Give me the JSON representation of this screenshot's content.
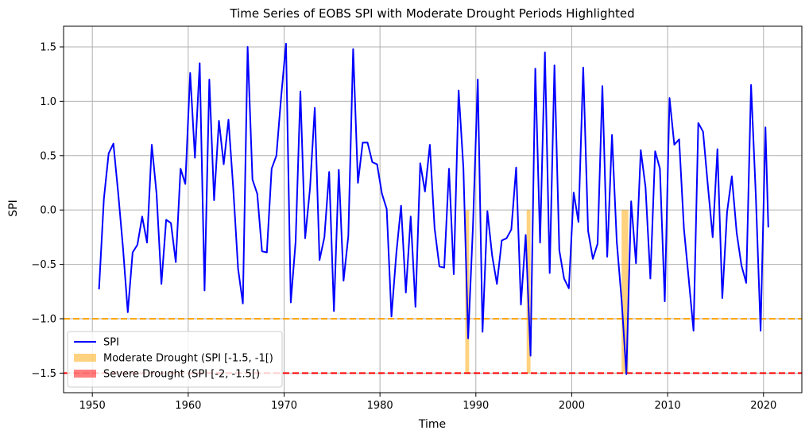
{
  "chart_data": {
    "type": "line",
    "title": "Time Series of EOBS SPI with Moderate Drought Periods Highlighted",
    "xlabel": "Time",
    "ylabel": "SPI",
    "xlim": [
      1947.0,
      2024.0
    ],
    "ylim": [
      -1.68,
      1.69
    ],
    "xticks": [
      1950,
      1960,
      1970,
      1980,
      1990,
      2000,
      2010,
      2020
    ],
    "xtick_labels": [
      "1950",
      "1960",
      "1970",
      "1980",
      "1990",
      "2000",
      "2010",
      "2020"
    ],
    "yticks": [
      -1.5,
      -1.0,
      -0.5,
      0.0,
      0.5,
      1.0,
      1.5
    ],
    "ytick_labels": [
      "−1.5",
      "−1.0",
      "−0.5",
      "0.0",
      "0.5",
      "1.0",
      "1.5"
    ],
    "grid": true,
    "legend_position": "lower-left",
    "colors": {
      "spi": "#0000ff",
      "moderate": "#ffa500",
      "severe": "#ff0000",
      "grid": "#b0b0b0"
    },
    "thresholds": [
      {
        "value": -1.0,
        "color": "#ffa500",
        "style": "dashed"
      },
      {
        "value": -1.5,
        "color": "#ff0000",
        "style": "dashed"
      }
    ],
    "moderate_drought_periods": [
      [
        1988.9,
        1989.3
      ],
      [
        1995.3,
        1995.7
      ],
      [
        2005.2,
        2005.9
      ]
    ],
    "series": [
      {
        "name": "SPI",
        "x": [
          1950.7,
          1951.2,
          1951.7,
          1952.2,
          1952.7,
          1953.2,
          1953.7,
          1954.2,
          1954.7,
          1955.2,
          1955.7,
          1956.2,
          1956.7,
          1957.2,
          1957.7,
          1958.2,
          1958.7,
          1959.2,
          1959.7,
          1960.2,
          1960.7,
          1961.2,
          1961.7,
          1962.2,
          1962.7,
          1963.2,
          1963.7,
          1964.2,
          1964.7,
          1965.2,
          1965.7,
          1966.2,
          1966.7,
          1967.2,
          1967.7,
          1968.2,
          1968.7,
          1969.2,
          1969.7,
          1970.2,
          1970.7,
          1971.2,
          1971.7,
          1972.2,
          1972.7,
          1973.2,
          1973.7,
          1974.2,
          1974.7,
          1975.2,
          1975.7,
          1976.2,
          1976.7,
          1977.2,
          1977.7,
          1978.2,
          1978.7,
          1979.2,
          1979.7,
          1980.2,
          1980.7,
          1981.2,
          1981.7,
          1982.2,
          1982.7,
          1983.2,
          1983.7,
          1984.2,
          1984.7,
          1985.2,
          1985.7,
          1986.2,
          1986.7,
          1987.2,
          1987.7,
          1988.2,
          1988.7,
          1989.2,
          1989.7,
          1990.2,
          1990.7,
          1991.2,
          1991.7,
          1992.2,
          1992.7,
          1993.2,
          1993.7,
          1994.2,
          1994.7,
          1995.2,
          1995.7,
          1996.2,
          1996.7,
          1997.2,
          1997.7,
          1998.2,
          1998.7,
          1999.2,
          1999.7,
          2000.2,
          2000.7,
          2001.2,
          2001.7,
          2002.2,
          2002.7,
          2003.2,
          2003.7,
          2004.2,
          2004.7,
          2005.2,
          2005.7,
          2006.2,
          2006.7,
          2007.2,
          2007.7,
          2008.2,
          2008.7,
          2009.2,
          2009.7,
          2010.2,
          2010.7,
          2011.2,
          2011.7,
          2012.2,
          2012.7,
          2013.2,
          2013.7,
          2014.2,
          2014.7,
          2015.2,
          2015.7,
          2016.2,
          2016.7,
          2017.2,
          2017.7,
          2018.2,
          2018.7,
          2019.2,
          2019.7,
          2020.2,
          2020.5
        ],
        "values": [
          -0.73,
          0.1,
          0.52,
          0.61,
          0.15,
          -0.35,
          -0.94,
          -0.39,
          -0.32,
          -0.06,
          -0.3,
          0.6,
          0.15,
          -0.68,
          -0.09,
          -0.12,
          -0.48,
          0.38,
          0.24,
          1.26,
          0.48,
          1.35,
          -0.74,
          1.2,
          0.09,
          0.82,
          0.42,
          0.83,
          0.2,
          -0.54,
          -0.86,
          1.5,
          0.28,
          0.15,
          -0.38,
          -0.39,
          0.38,
          0.5,
          1.05,
          1.53,
          -0.85,
          -0.29,
          1.09,
          -0.26,
          0.2,
          0.94,
          -0.46,
          -0.25,
          0.35,
          -0.93,
          0.37,
          -0.65,
          -0.24,
          1.48,
          0.25,
          0.62,
          0.62,
          0.44,
          0.42,
          0.15,
          0.01,
          -0.98,
          -0.4,
          0.04,
          -0.76,
          -0.06,
          -0.89,
          0.43,
          0.17,
          0.6,
          -0.17,
          -0.52,
          -0.53,
          0.38,
          -0.59,
          1.1,
          0.39,
          -1.18,
          -0.14,
          1.2,
          -1.12,
          -0.01,
          -0.42,
          -0.68,
          -0.28,
          -0.26,
          -0.18,
          0.39,
          -0.87,
          -0.23,
          -1.34,
          1.3,
          -0.3,
          1.45,
          -0.58,
          1.33,
          -0.37,
          -0.63,
          -0.72,
          0.16,
          -0.11,
          1.31,
          -0.19,
          -0.45,
          -0.31,
          1.14,
          -0.43,
          0.69,
          -0.29,
          -0.83,
          -1.51,
          0.08,
          -0.49,
          0.55,
          0.21,
          -0.63,
          0.54,
          0.38,
          -0.84,
          1.03,
          0.6,
          0.65,
          -0.17,
          -0.63,
          -1.11,
          0.8,
          0.72,
          0.22,
          -0.25,
          0.56,
          -0.81,
          -0.02,
          0.31,
          -0.21,
          -0.51,
          -0.67,
          1.15,
          0.13,
          -1.11,
          0.76,
          -0.16
        ]
      }
    ],
    "legend": [
      {
        "label": "SPI",
        "kind": "line",
        "color": "#0000ff"
      },
      {
        "label": "Moderate Drought (SPI [-1.5, -1[)",
        "kind": "patch",
        "color": "#ffa500"
      },
      {
        "label": "Severe Drought (SPI [-2, -1.5[)",
        "kind": "patch",
        "color": "#ff0000"
      }
    ]
  }
}
